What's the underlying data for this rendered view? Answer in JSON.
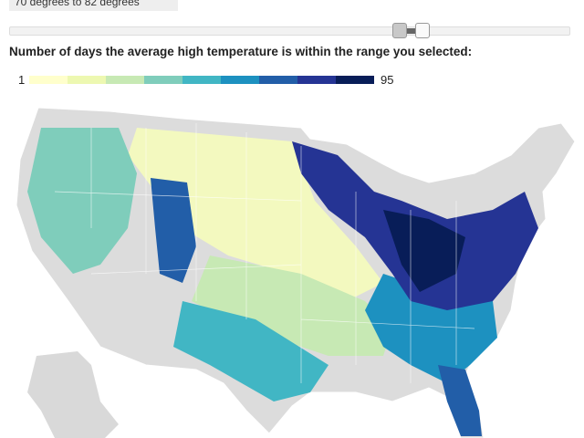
{
  "range_label": "70 degrees to 82 degrees",
  "legend": {
    "title": "Number of days the average high temperature is within the range you selected:",
    "min": "1",
    "max": "95",
    "colors": [
      "#ffffcc",
      "#edf8b1",
      "#c7e9b4",
      "#7fcdbb",
      "#41b6c4",
      "#1d91c0",
      "#225ea8",
      "#253494",
      "#081d58"
    ]
  }
}
